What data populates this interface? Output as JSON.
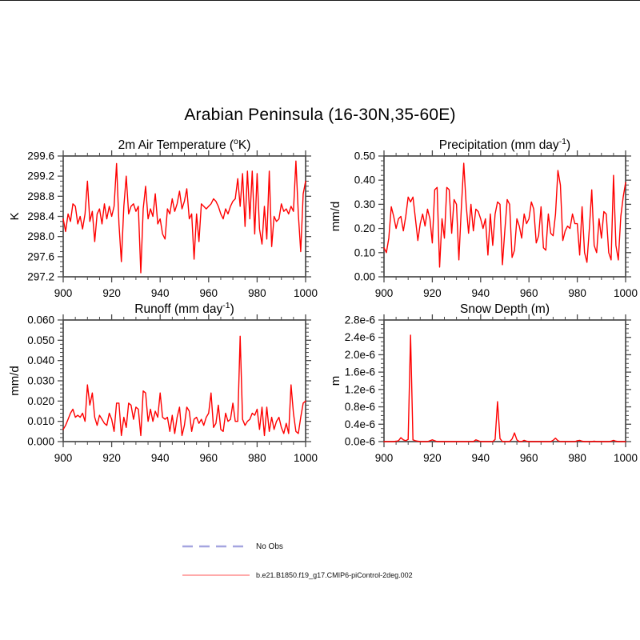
{
  "title": "Arabian Peninsula (16-30N,35-60E)",
  "series_color": "#ff0000",
  "axis_color": "#4a4a4a",
  "years": [
    900,
    901,
    902,
    903,
    904,
    905,
    906,
    907,
    908,
    909,
    910,
    911,
    912,
    913,
    914,
    915,
    916,
    917,
    918,
    919,
    920,
    921,
    922,
    923,
    924,
    925,
    926,
    927,
    928,
    929,
    930,
    931,
    932,
    933,
    934,
    935,
    936,
    937,
    938,
    939,
    940,
    941,
    942,
    943,
    944,
    945,
    946,
    947,
    948,
    949,
    950,
    951,
    952,
    953,
    954,
    955,
    956,
    957,
    958,
    959,
    960,
    961,
    962,
    963,
    964,
    965,
    966,
    967,
    968,
    969,
    970,
    971,
    972,
    973,
    974,
    975,
    976,
    977,
    978,
    979,
    980,
    981,
    982,
    983,
    984,
    985,
    986,
    987,
    988,
    989,
    990,
    991,
    992,
    993,
    994,
    995,
    996,
    997,
    998,
    999,
    1000
  ],
  "chart_data": [
    {
      "type": "line",
      "id": "air-temperature",
      "title_parts": [
        "2m Air Temperature (",
        "o",
        "K)"
      ],
      "ylabel": "K",
      "xlabel": "",
      "xlim": [
        900,
        1000
      ],
      "xticks": [
        900,
        920,
        940,
        960,
        980,
        1000
      ],
      "x_minor_divs": 4,
      "ylim": [
        297.2,
        299.6
      ],
      "ytick_values": [
        297.2,
        297.6,
        298.0,
        298.4,
        298.8,
        299.2,
        299.6
      ],
      "ytick_labels": [
        "297.2",
        "297.6",
        "298.0",
        "298.4",
        "298.8",
        "299.2",
        "299.6"
      ],
      "y_minor_divs": 4,
      "grid": false,
      "values": [
        298.35,
        298.1,
        298.45,
        298.3,
        298.65,
        298.6,
        298.25,
        298.4,
        298.15,
        298.45,
        299.1,
        298.3,
        298.5,
        297.9,
        298.45,
        298.55,
        298.25,
        298.65,
        298.35,
        298.6,
        298.4,
        298.6,
        299.45,
        298.25,
        297.5,
        298.6,
        299.2,
        298.45,
        298.6,
        298.65,
        298.5,
        298.6,
        297.28,
        298.55,
        299.0,
        298.35,
        298.55,
        298.4,
        298.85,
        298.25,
        298.35,
        298.05,
        297.95,
        298.55,
        298.45,
        298.75,
        298.5,
        298.65,
        298.9,
        298.55,
        298.7,
        298.95,
        298.35,
        298.45,
        297.55,
        298.45,
        297.9,
        298.65,
        298.6,
        298.55,
        298.6,
        298.65,
        298.75,
        298.7,
        298.6,
        298.45,
        298.35,
        298.55,
        298.45,
        298.6,
        298.7,
        298.75,
        299.15,
        298.6,
        299.25,
        298.2,
        299.3,
        298.35,
        299.3,
        298.05,
        299.25,
        298.15,
        297.85,
        298.6,
        297.95,
        299.3,
        297.8,
        298.4,
        298.3,
        298.35,
        298.65,
        298.5,
        298.55,
        298.45,
        298.6,
        298.5,
        299.5,
        298.45,
        297.7,
        298.85,
        299.1
      ]
    },
    {
      "type": "line",
      "id": "precipitation",
      "title_parts": [
        "Precipitation (mm day",
        "-1",
        ")"
      ],
      "ylabel": "mm/d",
      "xlabel": "",
      "xlim": [
        900,
        1000
      ],
      "xticks": [
        900,
        920,
        940,
        960,
        980,
        1000
      ],
      "x_minor_divs": 4,
      "ylim": [
        0.0,
        0.5
      ],
      "ytick_values": [
        0.0,
        0.1,
        0.2,
        0.3,
        0.4,
        0.5
      ],
      "ytick_labels": [
        "0.00",
        "0.10",
        "0.20",
        "0.30",
        "0.40",
        "0.50"
      ],
      "y_minor_divs": 5,
      "grid": false,
      "values": [
        0.12,
        0.1,
        0.16,
        0.29,
        0.25,
        0.2,
        0.24,
        0.25,
        0.19,
        0.25,
        0.33,
        0.31,
        0.33,
        0.24,
        0.15,
        0.22,
        0.26,
        0.21,
        0.28,
        0.24,
        0.14,
        0.36,
        0.37,
        0.04,
        0.24,
        0.16,
        0.37,
        0.36,
        0.18,
        0.32,
        0.3,
        0.07,
        0.28,
        0.47,
        0.3,
        0.18,
        0.3,
        0.19,
        0.28,
        0.27,
        0.24,
        0.2,
        0.24,
        0.09,
        0.26,
        0.13,
        0.26,
        0.31,
        0.3,
        0.05,
        0.19,
        0.32,
        0.3,
        0.08,
        0.11,
        0.24,
        0.21,
        0.16,
        0.26,
        0.22,
        0.24,
        0.31,
        0.28,
        0.14,
        0.17,
        0.29,
        0.12,
        0.11,
        0.26,
        0.18,
        0.17,
        0.26,
        0.44,
        0.38,
        0.15,
        0.19,
        0.21,
        0.2,
        0.26,
        0.22,
        0.22,
        0.09,
        0.29,
        0.1,
        0.06,
        0.2,
        0.36,
        0.13,
        0.1,
        0.24,
        0.16,
        0.27,
        0.26,
        0.1,
        0.07,
        0.42,
        0.13,
        0.07,
        0.25,
        0.33,
        0.39
      ]
    },
    {
      "type": "line",
      "id": "runoff",
      "title_parts": [
        "Runoff (mm day",
        "-1",
        ")"
      ],
      "ylabel": "mm/d",
      "xlabel": "",
      "xlim": [
        900,
        1000
      ],
      "xticks": [
        900,
        920,
        940,
        960,
        980,
        1000
      ],
      "x_minor_divs": 4,
      "ylim": [
        0.0,
        0.06
      ],
      "ytick_values": [
        0.0,
        0.01,
        0.02,
        0.03,
        0.04,
        0.05,
        0.06
      ],
      "ytick_labels": [
        "0.000",
        "0.010",
        "0.020",
        "0.030",
        "0.040",
        "0.050",
        "0.060"
      ],
      "y_minor_divs": 5,
      "grid": false,
      "values": [
        0.006,
        0.008,
        0.011,
        0.014,
        0.016,
        0.012,
        0.013,
        0.012,
        0.014,
        0.01,
        0.028,
        0.018,
        0.024,
        0.012,
        0.008,
        0.013,
        0.011,
        0.009,
        0.008,
        0.014,
        0.011,
        0.005,
        0.019,
        0.019,
        0.003,
        0.012,
        0.007,
        0.019,
        0.018,
        0.011,
        0.017,
        0.016,
        0.003,
        0.025,
        0.024,
        0.01,
        0.016,
        0.01,
        0.015,
        0.012,
        0.024,
        0.012,
        0.011,
        0.012,
        0.005,
        0.013,
        0.004,
        0.012,
        0.017,
        0.003,
        0.008,
        0.017,
        0.015,
        0.005,
        0.011,
        0.012,
        0.009,
        0.011,
        0.008,
        0.012,
        0.014,
        0.024,
        0.007,
        0.009,
        0.018,
        0.006,
        0.005,
        0.014,
        0.01,
        0.011,
        0.019,
        0.01,
        0.01,
        0.052,
        0.011,
        0.008,
        0.01,
        0.011,
        0.014,
        0.013,
        0.016,
        0.006,
        0.017,
        0.003,
        0.017,
        0.005,
        0.012,
        0.006,
        0.01,
        0.012,
        0.007,
        0.004,
        0.009,
        0.004,
        0.028,
        0.014,
        0.005,
        0.004,
        0.012,
        0.019,
        0.02
      ]
    },
    {
      "type": "line",
      "id": "snow-depth",
      "title_parts": [
        "Snow Depth (m)",
        "",
        ""
      ],
      "ylabel": "m",
      "xlabel": "",
      "xlim": [
        900,
        1000
      ],
      "xticks": [
        900,
        920,
        940,
        960,
        980,
        1000
      ],
      "x_minor_divs": 4,
      "ylim": [
        0.0,
        2.8e-06
      ],
      "ytick_values": [
        0.0,
        4e-07,
        8e-07,
        1.2e-06,
        1.6e-06,
        2e-06,
        2.4e-06,
        2.8e-06
      ],
      "ytick_labels": [
        "0.0e-6",
        "0.4e-6",
        "0.8e-6",
        "1.2e-6",
        "1.6e-6",
        "2.0e-6",
        "2.4e-6",
        "2.8e-6"
      ],
      "y_minor_divs": 4,
      "grid": false,
      "values": [
        0,
        0,
        0,
        0,
        0,
        1e-08,
        2e-08,
        9e-08,
        4e-08,
        2e-08,
        5e-08,
        2.45e-06,
        4e-08,
        2e-08,
        1e-08,
        0,
        0,
        0,
        0,
        2e-08,
        4e-08,
        2e-08,
        0,
        0,
        0,
        0,
        0,
        0,
        0,
        0,
        0,
        0,
        0,
        0,
        0,
        0,
        0,
        0,
        4e-08,
        2e-08,
        0,
        0,
        0,
        0,
        0,
        0,
        5e-08,
        9.2e-07,
        7e-08,
        0,
        0,
        0,
        0,
        6e-08,
        2e-07,
        4e-08,
        0,
        0,
        3e-08,
        1e-08,
        0,
        0,
        0,
        0,
        0,
        0,
        0,
        0,
        0,
        0,
        3e-08,
        8e-08,
        2e-08,
        0,
        0,
        0,
        0,
        0,
        0,
        0,
        2e-08,
        3e-08,
        1e-08,
        0,
        0,
        0,
        0,
        1e-08,
        0,
        0,
        0,
        0,
        0,
        0,
        1e-08,
        3e-08,
        1e-08,
        0,
        0,
        0,
        0
      ]
    }
  ],
  "legend": {
    "position": "bottom",
    "entries": [
      {
        "label": "No Obs",
        "color": "#a5a5e0",
        "style": "dashed"
      },
      {
        "label": "b.e21.B1850.f19_g17.CMIP6-piControl-2deg.002",
        "color": "#ffaaaa",
        "style": "solid"
      }
    ]
  }
}
